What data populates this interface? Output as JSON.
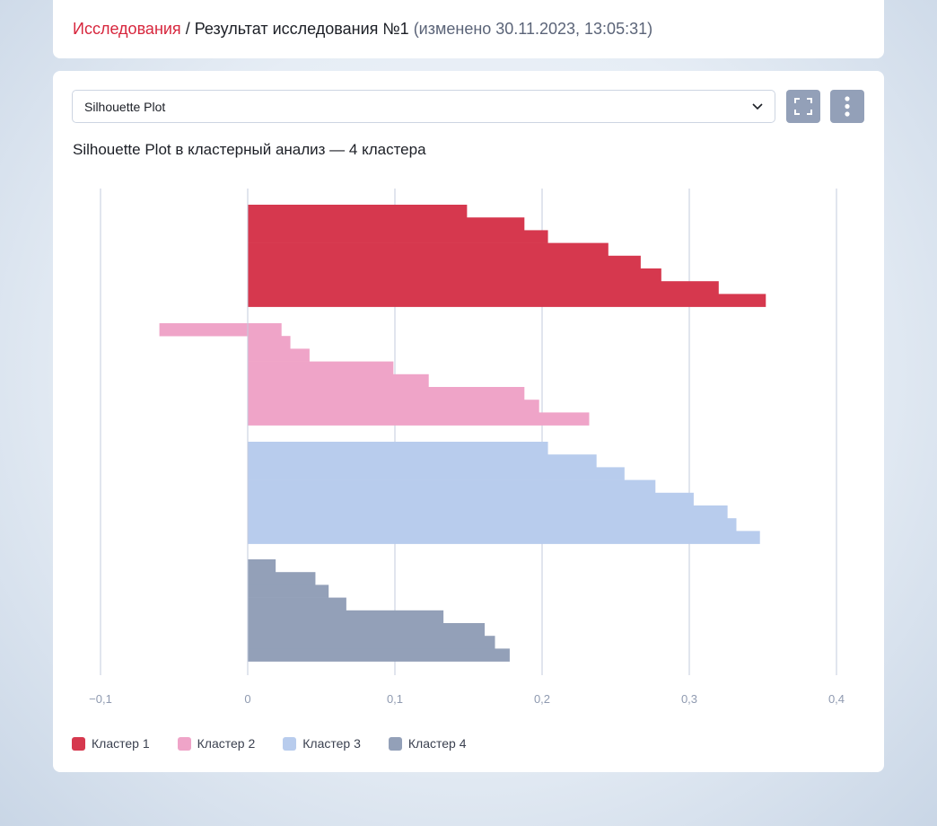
{
  "breadcrumb": {
    "root": "Исследования",
    "separator": " / ",
    "current": "Результат исследования №1",
    "meta": " (изменено 30.11.2023, 13:05:31)"
  },
  "toolbar": {
    "select_value": "Silhouette Plot",
    "select_icon": "chevron-down-icon",
    "fullscreen_icon": "fullscreen-icon",
    "more_icon": "more-vertical-icon"
  },
  "chart_data": {
    "type": "bar",
    "orientation": "horizontal",
    "title": "Silhouette Plot в кластерный анализ — 4 кластера",
    "xlabel": "",
    "ylabel": "",
    "xlim": [
      -0.1,
      0.4
    ],
    "xticks": [
      -0.1,
      0,
      0.1,
      0.2,
      0.3,
      0.4
    ],
    "xtick_labels": [
      "−0,1",
      "0",
      "0,1",
      "0,2",
      "0,3",
      "0,4"
    ],
    "grid": "vertical",
    "legend_position": "bottom-left",
    "series": [
      {
        "name": "Кластер 1",
        "color": "#d6384e",
        "values": [
          0.149,
          0.188,
          0.204,
          0.245,
          0.267,
          0.281,
          0.32,
          0.352
        ]
      },
      {
        "name": "Кластер 2",
        "color": "#efa4c8",
        "values": [
          0.023,
          0.029,
          0.042,
          0.099,
          0.123,
          0.188,
          0.198,
          0.232
        ],
        "first_bar_start": -0.06
      },
      {
        "name": "Кластер 3",
        "color": "#b8cced",
        "values": [
          0.204,
          0.237,
          0.256,
          0.277,
          0.303,
          0.326,
          0.332,
          0.348
        ]
      },
      {
        "name": "Кластер 4",
        "color": "#93a0b8",
        "values": [
          0.019,
          0.046,
          0.055,
          0.067,
          0.133,
          0.161,
          0.168,
          0.178
        ]
      }
    ]
  }
}
